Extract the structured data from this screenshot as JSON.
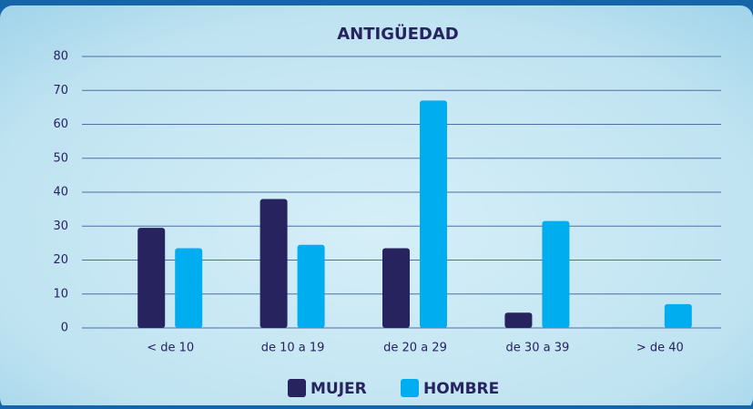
{
  "chart_data": {
    "type": "bar",
    "title": "ANTIGÜEDAD",
    "categories": [
      "< de 10",
      "de 10 a 19",
      "de 20 a 29",
      "de 30 a 39",
      "> de 40"
    ],
    "series": [
      {
        "name": "MUJER",
        "color": "#27235f",
        "values": [
          29.5,
          38,
          23.5,
          4.5,
          0
        ]
      },
      {
        "name": "HOMBRE",
        "color": "#00aeef",
        "values": [
          23.5,
          24.5,
          67,
          31.5,
          7
        ]
      }
    ],
    "ylim": [
      0,
      80
    ],
    "yticks": [
      0,
      10,
      20,
      30,
      40,
      50,
      60,
      70,
      80
    ],
    "grid": true,
    "legend": "bottom"
  }
}
